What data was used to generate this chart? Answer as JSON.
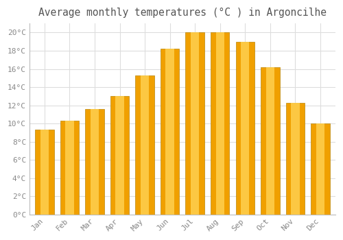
{
  "title": "Average monthly temperatures (°C ) in Argoncilhe",
  "months": [
    "Jan",
    "Feb",
    "Mar",
    "Apr",
    "May",
    "Jun",
    "Jul",
    "Aug",
    "Sep",
    "Oct",
    "Nov",
    "Dec"
  ],
  "values": [
    9.3,
    10.3,
    11.6,
    13.0,
    15.3,
    18.2,
    20.0,
    20.0,
    19.0,
    16.2,
    12.3,
    10.0
  ],
  "bar_color_center": "#FFD050",
  "bar_color_edge": "#F0A000",
  "background_color": "#FFFFFF",
  "plot_bg_color": "#FFFFFF",
  "grid_color": "#DDDDDD",
  "tick_label_color": "#888888",
  "title_color": "#555555",
  "ylim": [
    0,
    21
  ],
  "yticks": [
    0,
    2,
    4,
    6,
    8,
    10,
    12,
    14,
    16,
    18,
    20
  ],
  "ytick_labels": [
    "0°C",
    "2°C",
    "4°C",
    "6°C",
    "8°C",
    "10°C",
    "12°C",
    "14°C",
    "16°C",
    "18°C",
    "20°C"
  ],
  "title_fontsize": 10.5,
  "tick_fontsize": 8,
  "font_family": "monospace",
  "bar_width": 0.75
}
